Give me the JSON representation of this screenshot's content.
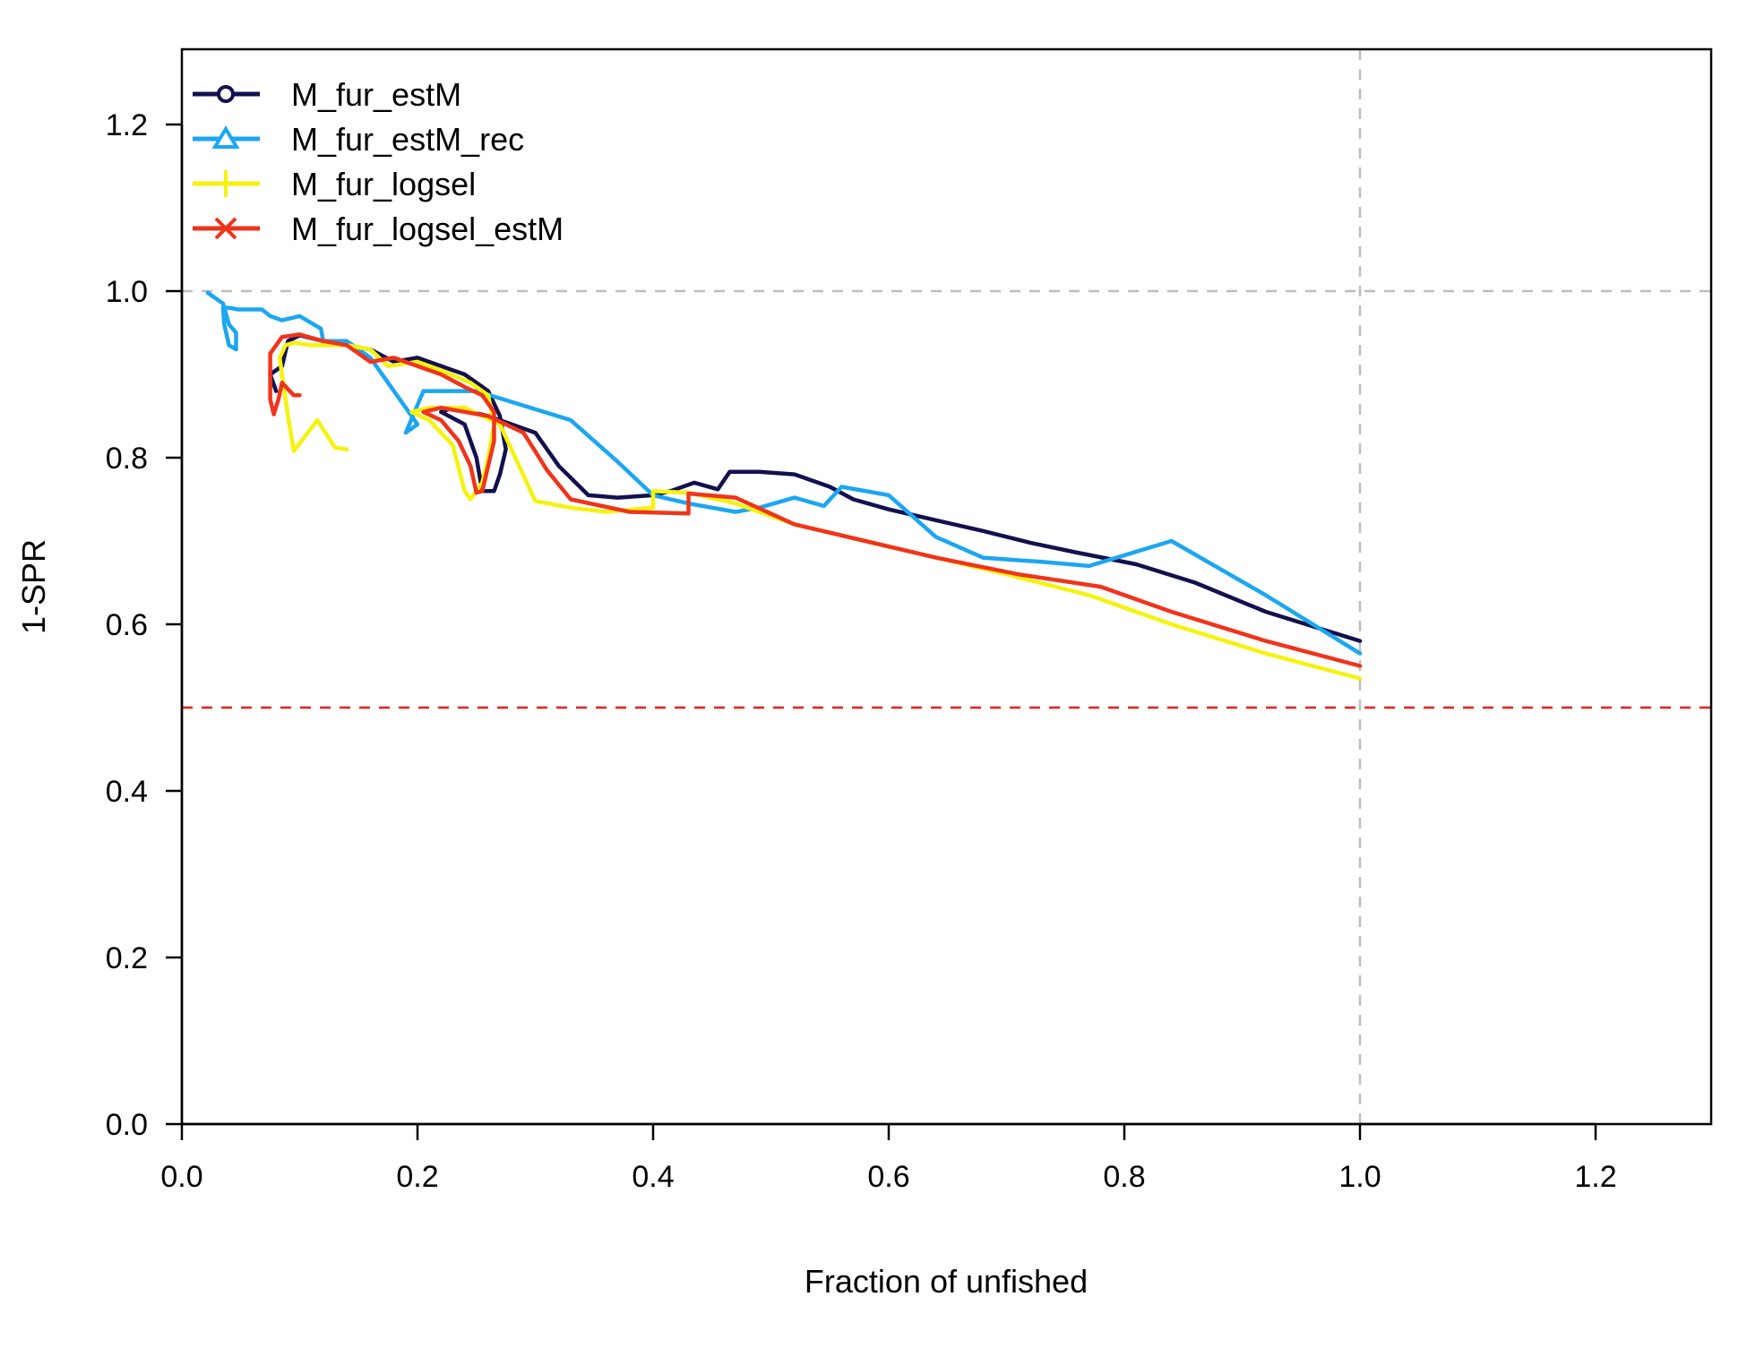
{
  "chart_data": {
    "type": "line",
    "xlabel": "Fraction of unfished",
    "ylabel": "1-SPR",
    "xlim": [
      0,
      1.3
    ],
    "ylim": [
      0,
      1.3
    ],
    "x_ticks": [
      "0.0",
      "0.2",
      "0.4",
      "0.6",
      "0.8",
      "1.0",
      "1.2"
    ],
    "y_ticks": [
      "0.0",
      "0.2",
      "0.4",
      "0.6",
      "0.8",
      "1.0",
      "1.2"
    ],
    "legend_position": "top-left",
    "grid": false,
    "reference_lines": [
      {
        "orientation": "horizontal",
        "value": 1.0,
        "color": "#bebebe",
        "style": "dashed"
      },
      {
        "orientation": "vertical",
        "value": 1.0,
        "color": "#bebebe",
        "style": "dashed"
      },
      {
        "orientation": "horizontal",
        "value": 0.5,
        "color": "#ee1c1c",
        "style": "dashed"
      }
    ],
    "series": [
      {
        "name": "M_fur_estM",
        "color": "#13104f",
        "marker": "circle",
        "x": [
          0.08,
          0.075,
          0.085,
          0.09,
          0.1,
          0.12,
          0.16,
          0.18,
          0.2,
          0.24,
          0.26,
          0.27,
          0.275,
          0.27,
          0.265,
          0.255,
          0.25,
          0.24,
          0.22,
          0.23,
          0.26,
          0.3,
          0.32,
          0.345,
          0.37,
          0.4,
          0.415,
          0.435,
          0.455,
          0.465,
          0.49,
          0.52,
          0.55,
          0.57,
          0.6,
          0.64,
          0.68,
          0.72,
          0.76,
          0.81,
          0.86,
          0.92,
          1.0
        ],
        "y": [
          0.88,
          0.9,
          0.91,
          0.94,
          0.947,
          0.94,
          0.93,
          0.915,
          0.92,
          0.9,
          0.88,
          0.85,
          0.81,
          0.78,
          0.76,
          0.76,
          0.8,
          0.84,
          0.855,
          0.86,
          0.85,
          0.83,
          0.79,
          0.755,
          0.752,
          0.755,
          0.76,
          0.77,
          0.762,
          0.783,
          0.783,
          0.78,
          0.765,
          0.75,
          0.738,
          0.725,
          0.712,
          0.698,
          0.686,
          0.672,
          0.65,
          0.615,
          0.58
        ]
      },
      {
        "name": "M_fur_estM_rec",
        "color": "#1ca6f2",
        "marker": "triangle",
        "x": [
          0.022,
          0.03,
          0.035,
          0.04,
          0.046,
          0.046,
          0.04,
          0.036,
          0.035,
          0.04,
          0.048,
          0.068,
          0.075,
          0.085,
          0.1,
          0.118,
          0.12,
          0.14,
          0.16,
          0.185,
          0.2,
          0.19,
          0.205,
          0.25,
          0.33,
          0.37,
          0.4,
          0.43,
          0.47,
          0.49,
          0.52,
          0.545,
          0.56,
          0.6,
          0.64,
          0.68,
          0.73,
          0.77,
          0.84,
          0.92,
          1.0
        ],
        "y": [
          0.998,
          0.99,
          0.985,
          0.96,
          0.95,
          0.93,
          0.935,
          0.96,
          0.98,
          0.98,
          0.978,
          0.978,
          0.97,
          0.965,
          0.97,
          0.955,
          0.94,
          0.94,
          0.92,
          0.87,
          0.84,
          0.83,
          0.88,
          0.88,
          0.845,
          0.795,
          0.755,
          0.745,
          0.735,
          0.74,
          0.752,
          0.742,
          0.765,
          0.755,
          0.705,
          0.68,
          0.675,
          0.67,
          0.7,
          0.635,
          0.565
        ]
      },
      {
        "name": "M_fur_logsel",
        "color": "#f5f20f",
        "marker": "plus",
        "x": [
          0.14,
          0.13,
          0.115,
          0.095,
          0.09,
          0.085,
          0.083,
          0.088,
          0.095,
          0.11,
          0.14,
          0.16,
          0.175,
          0.2,
          0.22,
          0.245,
          0.26,
          0.265,
          0.26,
          0.255,
          0.245,
          0.24,
          0.23,
          0.21,
          0.195,
          0.21,
          0.24,
          0.27,
          0.3,
          0.33,
          0.36,
          0.4,
          0.4,
          0.43,
          0.47,
          0.52,
          0.58,
          0.64,
          0.7,
          0.77,
          0.84,
          0.92,
          1.0
        ],
        "y": [
          0.81,
          0.812,
          0.845,
          0.808,
          0.85,
          0.9,
          0.92,
          0.935,
          0.938,
          0.935,
          0.935,
          0.93,
          0.91,
          0.915,
          0.905,
          0.89,
          0.875,
          0.84,
          0.8,
          0.77,
          0.75,
          0.76,
          0.815,
          0.845,
          0.855,
          0.86,
          0.86,
          0.84,
          0.748,
          0.74,
          0.735,
          0.74,
          0.76,
          0.758,
          0.745,
          0.72,
          0.7,
          0.68,
          0.66,
          0.635,
          0.6,
          0.565,
          0.535
        ]
      },
      {
        "name": "M_fur_logsel_estM",
        "color": "#f0341b",
        "marker": "x",
        "x": [
          0.1,
          0.095,
          0.085,
          0.082,
          0.078,
          0.075,
          0.075,
          0.085,
          0.1,
          0.12,
          0.14,
          0.16,
          0.18,
          0.2,
          0.22,
          0.24,
          0.255,
          0.265,
          0.265,
          0.26,
          0.255,
          0.25,
          0.245,
          0.235,
          0.22,
          0.205,
          0.22,
          0.26,
          0.29,
          0.31,
          0.33,
          0.38,
          0.43,
          0.43,
          0.47,
          0.52,
          0.58,
          0.64,
          0.71,
          0.78,
          0.84,
          0.92,
          1.0
        ],
        "y": [
          0.875,
          0.875,
          0.89,
          0.87,
          0.852,
          0.87,
          0.925,
          0.945,
          0.948,
          0.94,
          0.935,
          0.915,
          0.92,
          0.91,
          0.9,
          0.885,
          0.875,
          0.855,
          0.82,
          0.79,
          0.76,
          0.758,
          0.79,
          0.82,
          0.845,
          0.855,
          0.86,
          0.85,
          0.83,
          0.785,
          0.75,
          0.735,
          0.733,
          0.757,
          0.752,
          0.72,
          0.7,
          0.68,
          0.66,
          0.645,
          0.615,
          0.58,
          0.55
        ]
      }
    ]
  }
}
